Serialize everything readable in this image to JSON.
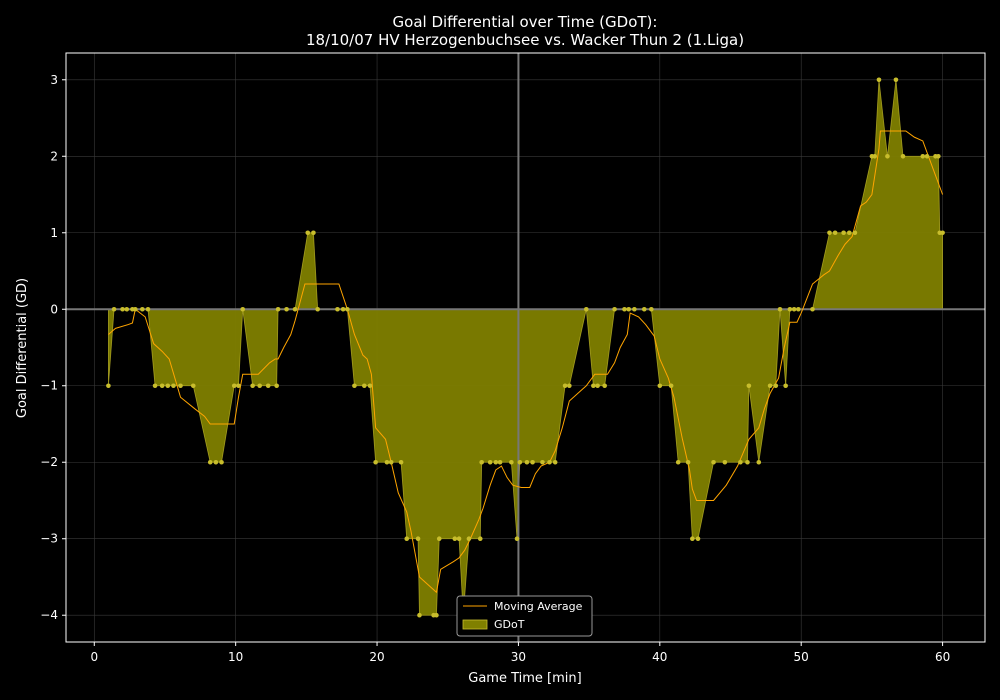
{
  "chart_data": {
    "type": "area",
    "title": "Goal Differential over Time (GDoT):",
    "subtitle": "18/10/07 HV Herzogenbuchsee  vs.  Wacker Thun 2 (1.Liga)",
    "xlabel": "Game Time [min]",
    "ylabel": "Goal Differential (GD)",
    "xlim": [
      -2,
      63
    ],
    "ylim": [
      -4.35,
      3.35
    ],
    "x_ticks": [
      0,
      10,
      20,
      30,
      40,
      50,
      60
    ],
    "y_ticks": [
      -4,
      -3,
      -2,
      -1,
      0,
      1,
      2,
      3
    ],
    "grid": true,
    "legend_position": "bottom-center",
    "halftime_line_x": 30,
    "colors": {
      "background": "#000000",
      "fill": "#808000",
      "points": "#c8bd2c",
      "moving_average": "#ffa500",
      "zero_line": "#777777",
      "grid": "#3a3a3a",
      "frame": "#ffffff"
    },
    "series": [
      {
        "name": "GDoT",
        "points": [
          [
            1.0,
            -1
          ],
          [
            1.4,
            0
          ],
          [
            2.0,
            0
          ],
          [
            2.3,
            0
          ],
          [
            2.7,
            0
          ],
          [
            2.9,
            0
          ],
          [
            3.4,
            0
          ],
          [
            3.8,
            0
          ],
          [
            4.3,
            -1
          ],
          [
            4.8,
            -1
          ],
          [
            5.2,
            -1
          ],
          [
            5.6,
            -1
          ],
          [
            6.1,
            -1
          ],
          [
            7.0,
            -1
          ],
          [
            8.2,
            -2
          ],
          [
            8.6,
            -2
          ],
          [
            9.0,
            -2
          ],
          [
            9.9,
            -1
          ],
          [
            10.2,
            -1
          ],
          [
            10.5,
            0
          ],
          [
            11.2,
            -1
          ],
          [
            11.7,
            -1
          ],
          [
            12.3,
            -1
          ],
          [
            12.9,
            -1
          ],
          [
            13.0,
            0
          ],
          [
            13.6,
            0
          ],
          [
            14.2,
            0
          ],
          [
            15.1,
            1
          ],
          [
            15.5,
            1
          ],
          [
            15.8,
            0
          ],
          [
            17.2,
            0
          ],
          [
            17.6,
            0
          ],
          [
            17.9,
            0
          ],
          [
            18.4,
            -1
          ],
          [
            19.1,
            -1
          ],
          [
            19.5,
            -1
          ],
          [
            19.9,
            -2
          ],
          [
            20.7,
            -2
          ],
          [
            21.0,
            -2
          ],
          [
            21.7,
            -2
          ],
          [
            22.1,
            -3
          ],
          [
            22.9,
            -3
          ],
          [
            23.0,
            -4
          ],
          [
            24.0,
            -4
          ],
          [
            24.2,
            -4
          ],
          [
            24.4,
            -3
          ],
          [
            25.5,
            -3
          ],
          [
            25.8,
            -3
          ],
          [
            26.1,
            -4
          ],
          [
            26.5,
            -3
          ],
          [
            27.3,
            -3
          ],
          [
            27.4,
            -2
          ],
          [
            28.0,
            -2
          ],
          [
            28.4,
            -2
          ],
          [
            28.7,
            -2
          ],
          [
            29.5,
            -2
          ],
          [
            29.9,
            -3
          ],
          [
            30.1,
            -2
          ],
          [
            30.6,
            -2
          ],
          [
            31.0,
            -2
          ],
          [
            31.7,
            -2
          ],
          [
            32.2,
            -2
          ],
          [
            32.6,
            -2
          ],
          [
            33.3,
            -1
          ],
          [
            33.6,
            -1
          ],
          [
            34.8,
            0
          ],
          [
            35.3,
            -1
          ],
          [
            35.6,
            -1
          ],
          [
            36.1,
            -1
          ],
          [
            36.8,
            0
          ],
          [
            37.5,
            0
          ],
          [
            37.8,
            0
          ],
          [
            38.2,
            0
          ],
          [
            38.9,
            0
          ],
          [
            39.4,
            0
          ],
          [
            40.0,
            -1
          ],
          [
            40.8,
            -1
          ],
          [
            41.3,
            -2
          ],
          [
            42.0,
            -2
          ],
          [
            42.3,
            -3
          ],
          [
            42.7,
            -3
          ],
          [
            43.8,
            -2
          ],
          [
            44.6,
            -2
          ],
          [
            45.7,
            -2
          ],
          [
            46.2,
            -2
          ],
          [
            46.3,
            -1
          ],
          [
            47.0,
            -2
          ],
          [
            47.8,
            -1
          ],
          [
            48.2,
            -1
          ],
          [
            48.5,
            0
          ],
          [
            48.9,
            -1
          ],
          [
            49.2,
            0
          ],
          [
            49.5,
            0
          ],
          [
            49.8,
            0
          ],
          [
            50.8,
            0
          ],
          [
            52.0,
            1
          ],
          [
            52.4,
            1
          ],
          [
            53.0,
            1
          ],
          [
            53.4,
            1
          ],
          [
            53.8,
            1
          ],
          [
            55.0,
            2
          ],
          [
            55.2,
            2
          ],
          [
            55.5,
            3
          ],
          [
            56.1,
            2
          ],
          [
            56.7,
            3
          ],
          [
            57.2,
            2
          ],
          [
            58.6,
            2
          ],
          [
            58.9,
            2
          ],
          [
            59.5,
            2
          ],
          [
            59.7,
            2
          ],
          [
            59.8,
            1
          ],
          [
            60.0,
            1
          ]
        ]
      },
      {
        "name": "Moving Average",
        "points": [
          [
            1.0,
            -0.33
          ],
          [
            1.5,
            -0.25
          ],
          [
            2.4,
            -0.2
          ],
          [
            2.7,
            -0.18
          ],
          [
            2.9,
            0
          ],
          [
            3.6,
            -0.1
          ],
          [
            4.2,
            -0.45
          ],
          [
            4.8,
            -0.55
          ],
          [
            5.3,
            -0.65
          ],
          [
            6.1,
            -1.15
          ],
          [
            7.1,
            -1.3
          ],
          [
            7.8,
            -1.4
          ],
          [
            8.2,
            -1.5
          ],
          [
            8.9,
            -1.5
          ],
          [
            9.6,
            -1.5
          ],
          [
            9.9,
            -1.5
          ],
          [
            10.2,
            -1.15
          ],
          [
            10.5,
            -0.85
          ],
          [
            11.6,
            -0.85
          ],
          [
            12.4,
            -0.7
          ],
          [
            12.8,
            -0.65
          ],
          [
            13.0,
            -0.65
          ],
          [
            13.4,
            -0.5
          ],
          [
            13.9,
            -0.33
          ],
          [
            14.2,
            -0.15
          ],
          [
            14.9,
            0.33
          ],
          [
            15.4,
            0.33
          ],
          [
            15.8,
            0.33
          ],
          [
            16.6,
            0.33
          ],
          [
            17.3,
            0.33
          ],
          [
            17.9,
            0.0
          ],
          [
            18.4,
            -0.33
          ],
          [
            19.0,
            -0.6
          ],
          [
            19.3,
            -0.65
          ],
          [
            19.6,
            -0.85
          ],
          [
            19.9,
            -1.55
          ],
          [
            20.6,
            -1.7
          ],
          [
            21.0,
            -2.0
          ],
          [
            21.5,
            -2.4
          ],
          [
            22.1,
            -2.65
          ],
          [
            22.4,
            -2.9
          ],
          [
            23.0,
            -3.5
          ],
          [
            23.6,
            -3.6
          ],
          [
            24.2,
            -3.7
          ],
          [
            24.5,
            -3.4
          ],
          [
            25.4,
            -3.3
          ],
          [
            25.8,
            -3.25
          ],
          [
            26.2,
            -3.15
          ],
          [
            26.6,
            -3.0
          ],
          [
            27.2,
            -2.75
          ],
          [
            27.5,
            -2.6
          ],
          [
            28.0,
            -2.3
          ],
          [
            28.4,
            -2.1
          ],
          [
            28.8,
            -2.05
          ],
          [
            29.2,
            -2.2
          ],
          [
            29.6,
            -2.3
          ],
          [
            30.2,
            -2.33
          ],
          [
            30.8,
            -2.33
          ],
          [
            31.2,
            -2.15
          ],
          [
            31.6,
            -2.05
          ],
          [
            32.2,
            -2.0
          ],
          [
            32.6,
            -1.85
          ],
          [
            33.1,
            -1.55
          ],
          [
            33.6,
            -1.2
          ],
          [
            34.2,
            -1.1
          ],
          [
            34.8,
            -1.0
          ],
          [
            35.4,
            -0.85
          ],
          [
            36.3,
            -0.85
          ],
          [
            36.8,
            -0.7
          ],
          [
            37.2,
            -0.5
          ],
          [
            37.7,
            -0.33
          ],
          [
            37.9,
            -0.05
          ],
          [
            38.5,
            -0.1
          ],
          [
            39.0,
            -0.2
          ],
          [
            39.6,
            -0.35
          ],
          [
            40.0,
            -0.65
          ],
          [
            40.6,
            -0.9
          ],
          [
            41.0,
            -1.15
          ],
          [
            41.6,
            -1.7
          ],
          [
            42.1,
            -2.1
          ],
          [
            42.3,
            -2.35
          ],
          [
            42.6,
            -2.5
          ],
          [
            43.8,
            -2.5
          ],
          [
            44.7,
            -2.3
          ],
          [
            45.5,
            -2.05
          ],
          [
            46.3,
            -1.7
          ],
          [
            47.0,
            -1.55
          ],
          [
            47.4,
            -1.3
          ],
          [
            47.8,
            -1.1
          ],
          [
            48.4,
            -0.9
          ],
          [
            48.8,
            -0.5
          ],
          [
            49.2,
            -0.17
          ],
          [
            49.7,
            -0.17
          ],
          [
            50.0,
            -0.05
          ],
          [
            50.8,
            0.33
          ],
          [
            51.6,
            0.45
          ],
          [
            52.0,
            0.5
          ],
          [
            52.6,
            0.7
          ],
          [
            53.1,
            0.85
          ],
          [
            53.6,
            0.95
          ],
          [
            54.2,
            1.35
          ],
          [
            54.6,
            1.4
          ],
          [
            55.0,
            1.5
          ],
          [
            55.5,
            2.1
          ],
          [
            55.6,
            2.33
          ],
          [
            56.6,
            2.33
          ],
          [
            57.4,
            2.33
          ],
          [
            58.0,
            2.25
          ],
          [
            58.6,
            2.2
          ],
          [
            59.0,
            2.0
          ],
          [
            59.5,
            1.75
          ],
          [
            60.0,
            1.5
          ]
        ]
      }
    ]
  }
}
